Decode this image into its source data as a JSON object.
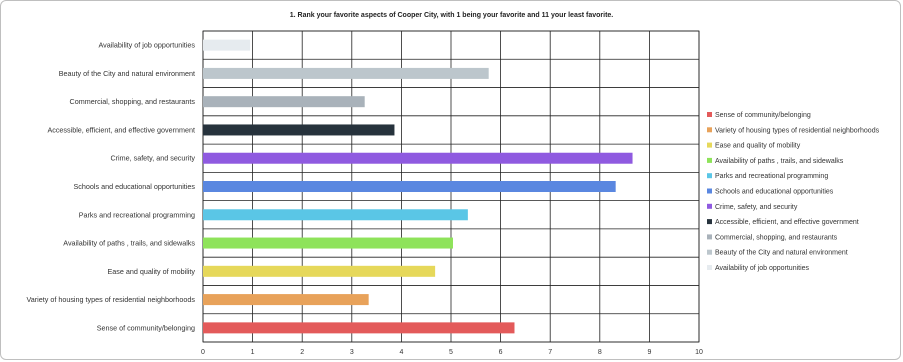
{
  "chart_data": {
    "type": "bar",
    "orientation": "horizontal",
    "title": "1. Rank your favorite aspects of Cooper City, with 1 being your favorite and 11 your least favorite.",
    "xlabel": "",
    "ylabel": "",
    "xlim": [
      0,
      10
    ],
    "xticks": [
      "0",
      "1",
      "2",
      "3",
      "4",
      "5",
      "6",
      "7",
      "8",
      "9",
      "10"
    ],
    "grid": true,
    "legend_position": "right",
    "categories": [
      "Sense of community/belonging",
      "Variety of housing types of residential neighborhoods",
      "Ease and quality of mobility",
      "Availability of paths , trails, and sidewalks",
      "Parks and recreational  programming",
      "Schools and educational opportunities",
      "Crime, safety, and security",
      "Accessible, efficient, and effective government",
      "Commercial, shopping, and restaurants",
      "Beauty of the City and natural environment",
      "Availability of job opportunities"
    ],
    "values": [
      6.28,
      3.34,
      4.68,
      5.04,
      5.34,
      8.32,
      8.66,
      3.86,
      3.26,
      5.76,
      0.95
    ],
    "colors": [
      "#e35a5a",
      "#e8a25a",
      "#e6d85a",
      "#8ee35a",
      "#5ac6e6",
      "#5a87e0",
      "#8f5ae0",
      "#27333d",
      "#a9b2ba",
      "#bcc6cc",
      "#e6ebef"
    ]
  }
}
